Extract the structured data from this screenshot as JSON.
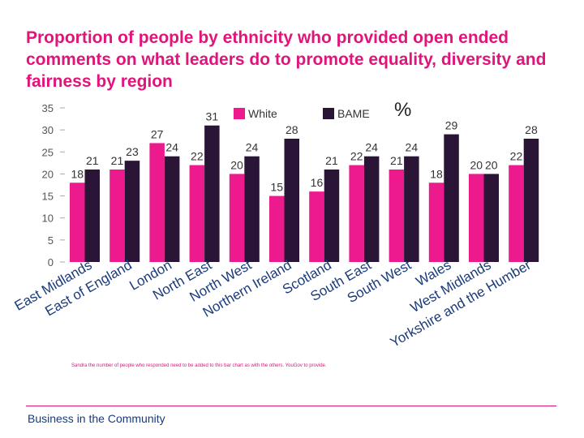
{
  "title": "Proportion of people by ethnicity who provided open ended comments on what leaders do to promote equality, diversity and fairness by region",
  "units_label": "%",
  "note": "Sandra the number of people who responded need to be added to this bar chart as with the others.  YouGov to provide.",
  "footer": "Business in the Community",
  "colors": {
    "accent": "#e0147a",
    "white_series": "#ec1a8c",
    "bame_series": "#2a1536",
    "footer_text": "#1a3a7a"
  },
  "chart_data": {
    "type": "bar",
    "categories": [
      "East Midlands",
      "East of England",
      "London",
      "North East",
      "North West",
      "Northern Ireland",
      "Scotland",
      "South East",
      "South West",
      "Wales",
      "West Midlands",
      "Yorkshire and the Humber"
    ],
    "series": [
      {
        "name": "White",
        "values": [
          18,
          21,
          27,
          22,
          20,
          15,
          16,
          22,
          21,
          18,
          20,
          22
        ]
      },
      {
        "name": "BAME",
        "values": [
          21,
          23,
          24,
          31,
          24,
          28,
          21,
          24,
          24,
          29,
          20,
          28
        ]
      }
    ],
    "yticks": [
      0,
      5,
      10,
      15,
      20,
      25,
      30,
      35
    ],
    "ylim": [
      0,
      35
    ],
    "xlabel": "",
    "ylabel": "%",
    "legend_position": "top"
  }
}
